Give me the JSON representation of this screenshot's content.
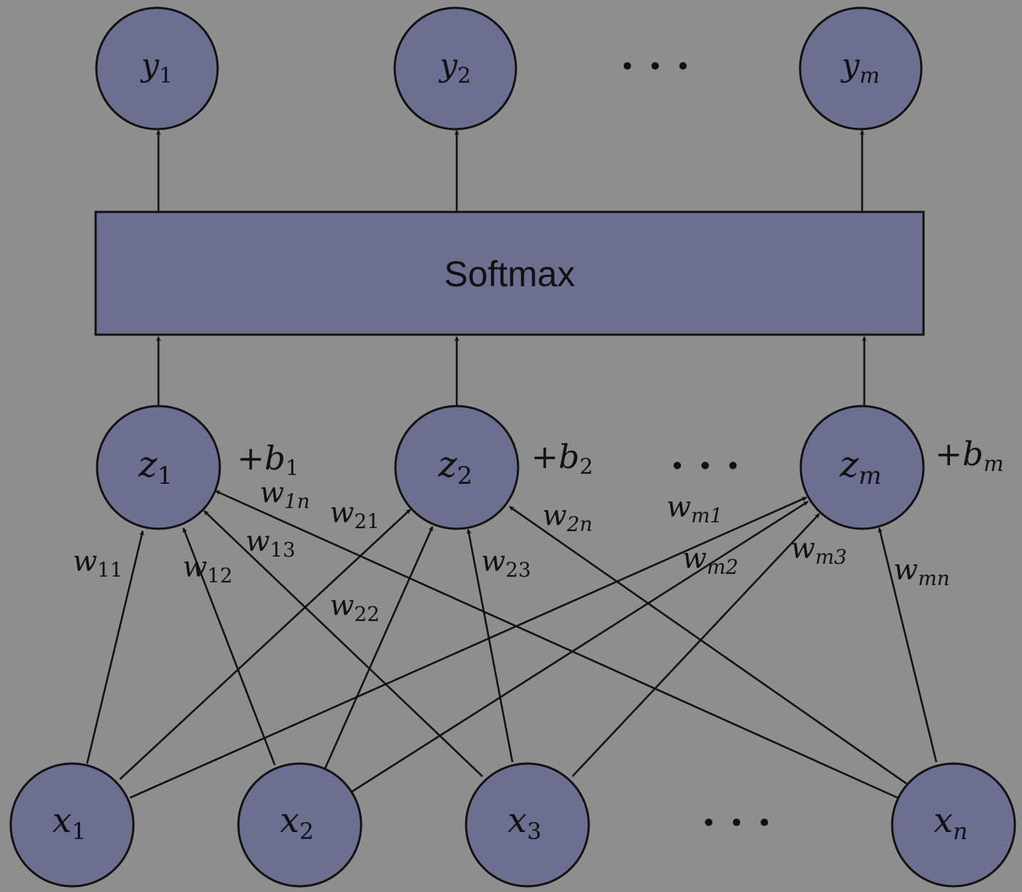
{
  "diagram": {
    "softmax_label": "Softmax",
    "outputs": [
      {
        "base": "y",
        "sub": "1"
      },
      {
        "base": "y",
        "sub": "2"
      },
      {
        "base": "y",
        "sub": "m"
      }
    ],
    "hidden": [
      {
        "base": "z",
        "sub": "1",
        "bias_base": "b",
        "bias_sub": "1"
      },
      {
        "base": "z",
        "sub": "2",
        "bias_base": "b",
        "bias_sub": "2"
      },
      {
        "base": "z",
        "sub": "m",
        "bias_base": "b",
        "bias_sub": "m"
      }
    ],
    "inputs": [
      {
        "base": "x",
        "sub": "1"
      },
      {
        "base": "x",
        "sub": "2"
      },
      {
        "base": "x",
        "sub": "3"
      },
      {
        "base": "x",
        "sub": "n"
      }
    ],
    "ellipsis": "· · ·",
    "weights": [
      {
        "base": "w",
        "sub": "11"
      },
      {
        "base": "w",
        "sub": "12"
      },
      {
        "base": "w",
        "sub": "13"
      },
      {
        "base": "w",
        "sub": "1n"
      },
      {
        "base": "w",
        "sub": "21"
      },
      {
        "base": "w",
        "sub": "22"
      },
      {
        "base": "w",
        "sub": "23"
      },
      {
        "base": "w",
        "sub": "2n"
      },
      {
        "base": "w",
        "sub": "m1"
      },
      {
        "base": "w",
        "sub": "m2"
      },
      {
        "base": "w",
        "sub": "m3"
      },
      {
        "base": "w",
        "sub": "mn"
      }
    ],
    "colors": {
      "background": "#8e8e8e",
      "node_fill": "#6d6f91",
      "stroke": "#111111"
    }
  }
}
